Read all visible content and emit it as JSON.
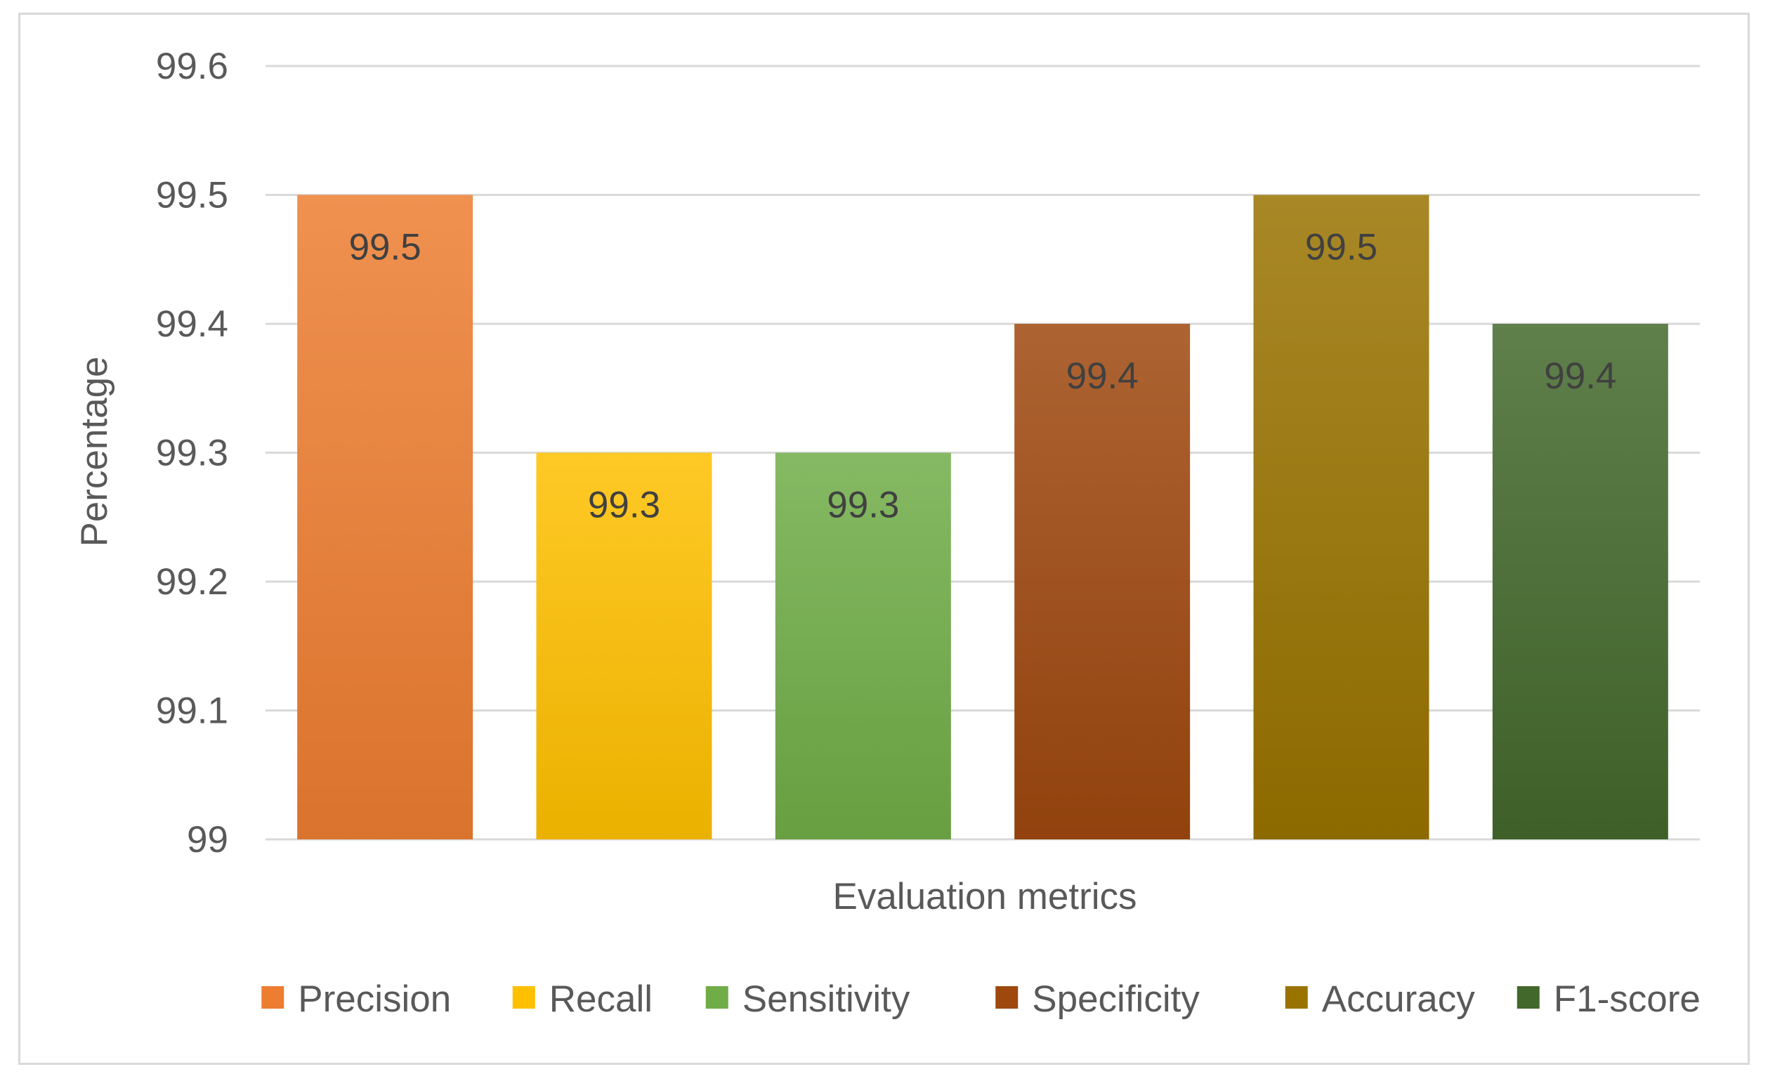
{
  "chart_data": {
    "type": "bar",
    "title": "",
    "xlabel": "Evaluation metrics",
    "ylabel": "Percentage",
    "ylim": [
      99,
      99.6
    ],
    "yticks": [
      "99",
      "99.1",
      "99.2",
      "99.3",
      "99.4",
      "99.5",
      "99.6"
    ],
    "grid": true,
    "legend_position": "bottom",
    "categories": [
      "Precision",
      "Recall",
      "Sensitivity",
      "Specificity",
      "Accuracy",
      "F1-score"
    ],
    "series": [
      {
        "name": "Precision",
        "value": 99.5,
        "label": "99.5",
        "color": "#ED7D31"
      },
      {
        "name": "Recall",
        "value": 99.3,
        "label": "99.3",
        "color": "#FFC000"
      },
      {
        "name": "Sensitivity",
        "value": 99.3,
        "label": "99.3",
        "color": "#70AD47"
      },
      {
        "name": "Specificity",
        "value": 99.4,
        "label": "99.4",
        "color": "#9E480E"
      },
      {
        "name": "Accuracy",
        "value": 99.5,
        "label": "99.5",
        "color": "#997300"
      },
      {
        "name": "F1-score",
        "value": 99.4,
        "label": "99.4",
        "color": "#43682B"
      }
    ]
  }
}
